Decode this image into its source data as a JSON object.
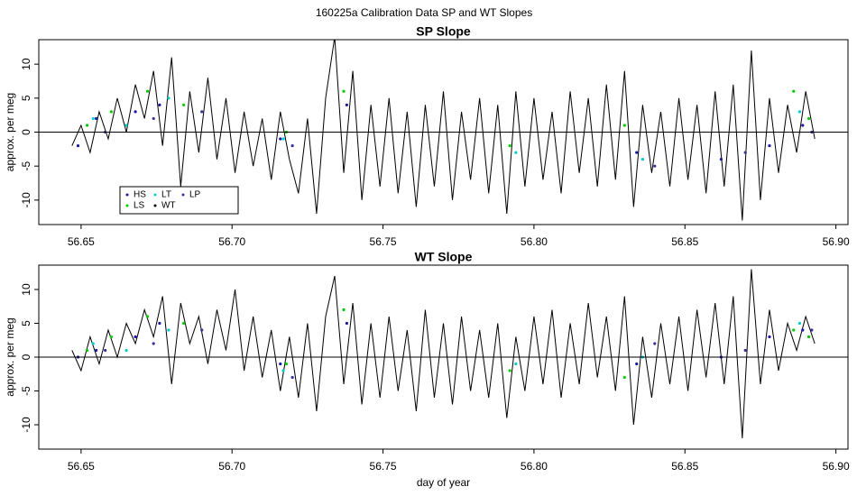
{
  "title": "160225a   Calibration Data SP and WT Slopes",
  "chart_data": [
    {
      "type": "line",
      "title": "SP Slope",
      "ylabel": "approx. per meg",
      "xlim": [
        56.636,
        56.904
      ],
      "ylim": [
        -13.6,
        13.6
      ],
      "xticks": [
        56.65,
        {
          "value": 56.7,
          "label": "56.70"
        },
        56.75,
        {
          "value": 56.8,
          "label": "56.80"
        },
        56.85,
        {
          "value": 56.9,
          "label": "56.90"
        }
      ],
      "yticks": [
        -10,
        -5,
        0,
        5,
        10
      ],
      "hline": 0,
      "legend": "bottom-left",
      "series": [
        {
          "name": "HS",
          "color": "#1a1aa0",
          "mark": "points",
          "x": [
            56.649,
            56.655,
            56.668,
            56.676,
            56.716,
            56.738,
            56.834,
            56.862,
            56.878,
            56.889
          ],
          "values": [
            -2,
            2,
            3,
            4,
            -1,
            4,
            -3,
            -4,
            -2,
            1
          ]
        },
        {
          "name": "LS",
          "color": "#00cc00",
          "mark": "points",
          "x": [
            56.652,
            56.66,
            56.672,
            56.684,
            56.718,
            56.737,
            56.792,
            56.83,
            56.886,
            56.891
          ],
          "values": [
            1,
            3,
            6,
            4,
            0,
            6,
            -2,
            1,
            6,
            2
          ]
        },
        {
          "name": "LT",
          "color": "#00cccc",
          "mark": "points",
          "x": [
            56.654,
            56.665,
            56.679,
            56.717,
            56.794,
            56.836,
            56.888
          ],
          "values": [
            2,
            1,
            5,
            -1,
            -3,
            -4,
            3
          ]
        },
        {
          "name": "WT",
          "color": "#000000",
          "mark": "line",
          "x": [
            56.647,
            56.65,
            56.653,
            56.656,
            56.659,
            56.662,
            56.665,
            56.668,
            56.671,
            56.674,
            56.677,
            56.68,
            56.683,
            56.686,
            56.689,
            56.692,
            56.695,
            56.698,
            56.701,
            56.704,
            56.707,
            56.71,
            56.713,
            56.716,
            56.719,
            56.722,
            56.725,
            56.728,
            56.731,
            56.734,
            56.737,
            56.74,
            56.743,
            56.746,
            56.749,
            56.752,
            56.755,
            56.758,
            56.761,
            56.764,
            56.767,
            56.77,
            56.773,
            56.776,
            56.779,
            56.782,
            56.785,
            56.788,
            56.791,
            56.794,
            56.797,
            56.8,
            56.803,
            56.806,
            56.809,
            56.812,
            56.815,
            56.818,
            56.821,
            56.824,
            56.827,
            56.83,
            56.833,
            56.836,
            56.839,
            56.842,
            56.845,
            56.848,
            56.851,
            56.854,
            56.857,
            56.86,
            56.863,
            56.866,
            56.869,
            56.872,
            56.875,
            56.878,
            56.881,
            56.884,
            56.887,
            56.89,
            56.893
          ],
          "values": [
            -2,
            1,
            -3,
            3,
            -1,
            5,
            0,
            7,
            2,
            9,
            -2,
            11,
            -8,
            6,
            -3,
            8,
            -4,
            5,
            -6,
            3,
            -5,
            2,
            -7,
            3,
            -4,
            -9,
            2,
            -12,
            5,
            14,
            -6,
            9,
            -10,
            4,
            -8,
            5,
            -9,
            3,
            -11,
            4,
            -8,
            6,
            -10,
            3,
            -7,
            5,
            -9,
            4,
            -12,
            6,
            -8,
            5,
            -7,
            3,
            -9,
            6,
            -6,
            5,
            -8,
            7,
            -7,
            9,
            -11,
            4,
            -6,
            3,
            -8,
            5,
            -7,
            4,
            -9,
            6,
            -8,
            7,
            -13,
            12,
            -10,
            5,
            -6,
            4,
            -3,
            6,
            -1
          ]
        },
        {
          "name": "LP",
          "color": "#333399",
          "mark": "points",
          "x": [
            56.658,
            56.674,
            56.69,
            56.72,
            56.84,
            56.87,
            56.892
          ],
          "values": [
            0,
            2,
            3,
            -2,
            -5,
            -3,
            0
          ]
        }
      ]
    },
    {
      "type": "line",
      "title": "WT Slope",
      "ylabel": "approx. per meg",
      "xlabel": "day of year",
      "xlim": [
        56.636,
        56.904
      ],
      "ylim": [
        -13.6,
        13.6
      ],
      "xticks": [
        56.65,
        {
          "value": 56.7,
          "label": "56.70"
        },
        56.75,
        {
          "value": 56.8,
          "label": "56.80"
        },
        56.85,
        {
          "value": 56.9,
          "label": "56.90"
        }
      ],
      "yticks": [
        -10,
        -5,
        0,
        5,
        10
      ],
      "hline": 0,
      "series": [
        {
          "name": "HS",
          "color": "#1a1aa0",
          "mark": "points",
          "x": [
            56.649,
            56.655,
            56.668,
            56.676,
            56.716,
            56.738,
            56.834,
            56.862,
            56.878,
            56.889
          ],
          "values": [
            0,
            1,
            3,
            5,
            -1,
            5,
            -1,
            0,
            3,
            4
          ]
        },
        {
          "name": "LS",
          "color": "#00cc00",
          "mark": "points",
          "x": [
            56.652,
            56.66,
            56.672,
            56.684,
            56.718,
            56.737,
            56.792,
            56.83,
            56.886,
            56.891
          ],
          "values": [
            1,
            3,
            6,
            5,
            -1,
            7,
            -2,
            -3,
            4,
            3
          ]
        },
        {
          "name": "LT",
          "color": "#00cccc",
          "mark": "points",
          "x": [
            56.654,
            56.665,
            56.679,
            56.717,
            56.794,
            56.836,
            56.888
          ],
          "values": [
            2,
            1,
            4,
            -2,
            -1,
            0,
            5
          ]
        },
        {
          "name": "WT",
          "color": "#000000",
          "mark": "line",
          "x": [
            56.647,
            56.65,
            56.653,
            56.656,
            56.659,
            56.662,
            56.665,
            56.668,
            56.671,
            56.674,
            56.677,
            56.68,
            56.683,
            56.686,
            56.689,
            56.692,
            56.695,
            56.698,
            56.701,
            56.704,
            56.707,
            56.71,
            56.713,
            56.716,
            56.719,
            56.722,
            56.725,
            56.728,
            56.731,
            56.734,
            56.737,
            56.74,
            56.743,
            56.746,
            56.749,
            56.752,
            56.755,
            56.758,
            56.761,
            56.764,
            56.767,
            56.77,
            56.773,
            56.776,
            56.779,
            56.782,
            56.785,
            56.788,
            56.791,
            56.794,
            56.797,
            56.8,
            56.803,
            56.806,
            56.809,
            56.812,
            56.815,
            56.818,
            56.821,
            56.824,
            56.827,
            56.83,
            56.833,
            56.836,
            56.839,
            56.842,
            56.845,
            56.848,
            56.851,
            56.854,
            56.857,
            56.86,
            56.863,
            56.866,
            56.869,
            56.872,
            56.875,
            56.878,
            56.881,
            56.884,
            56.887,
            56.89,
            56.893
          ],
          "values": [
            1,
            -2,
            3,
            -1,
            4,
            0,
            5,
            2,
            7,
            3,
            9,
            -4,
            8,
            2,
            6,
            -1,
            7,
            1,
            10,
            -2,
            6,
            -3,
            4,
            -5,
            3,
            -6,
            5,
            -8,
            6,
            12,
            -4,
            8,
            -7,
            5,
            -6,
            6,
            -5,
            4,
            -8,
            7,
            -6,
            5,
            -7,
            6,
            -5,
            4,
            -6,
            5,
            -9,
            3,
            -5,
            6,
            -4,
            7,
            -6,
            5,
            -4,
            8,
            -3,
            6,
            -5,
            9,
            -10,
            3,
            -6,
            5,
            -4,
            6,
            -5,
            7,
            -3,
            8,
            -4,
            9,
            -12,
            13,
            -4,
            7,
            -2,
            5,
            1,
            6,
            2
          ]
        },
        {
          "name": "LP",
          "color": "#333399",
          "mark": "points",
          "x": [
            56.658,
            56.674,
            56.69,
            56.72,
            56.84,
            56.87,
            56.892
          ],
          "values": [
            1,
            2,
            4,
            -3,
            2,
            1,
            4
          ]
        }
      ]
    }
  ]
}
